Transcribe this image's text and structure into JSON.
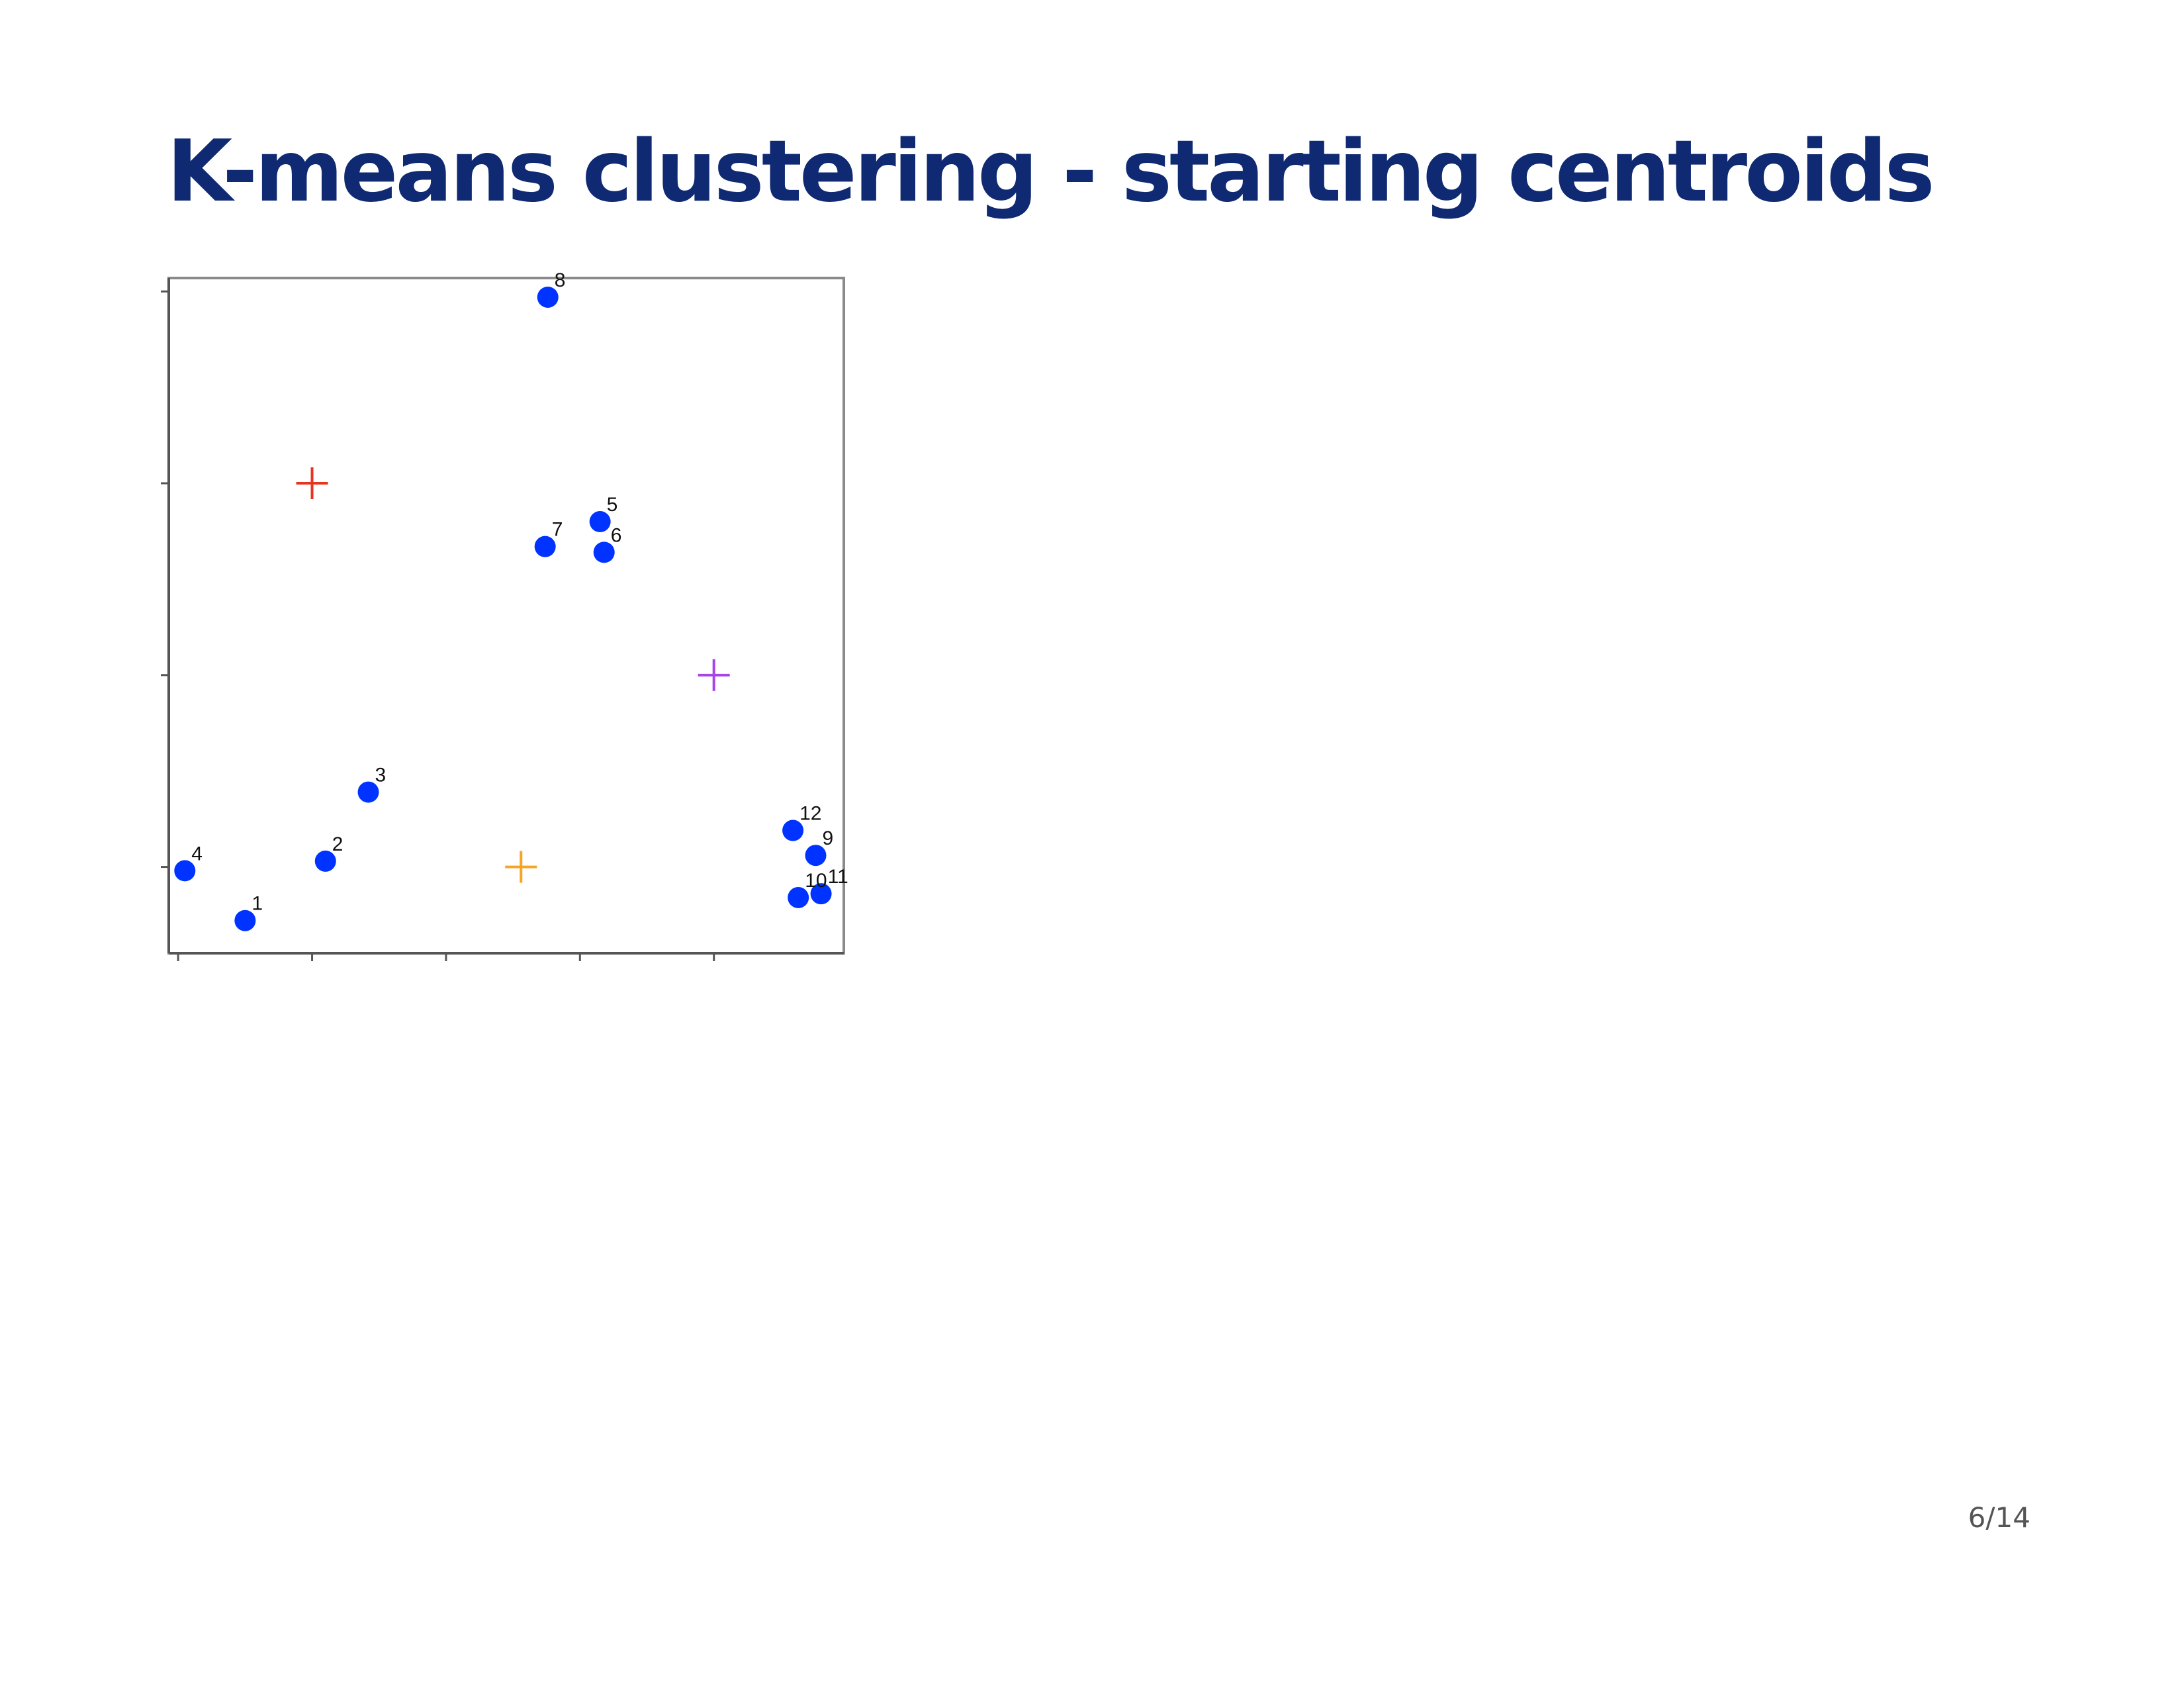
{
  "slide": {
    "title": "K-means clustering - starting centroids",
    "page_number": "6/14"
  },
  "colors": {
    "title": "#0f2a72",
    "point": "#0033ff",
    "axis": "#555555"
  },
  "icons": {
    "centroid_marker": "plus-icon"
  },
  "chart_data": {
    "type": "scatter",
    "title": "",
    "xlabel": "",
    "ylabel": "",
    "xlim": [
      0.03,
      5.07
    ],
    "ylim": [
      0.55,
      4.07
    ],
    "x_ticks": [
      0.1,
      1.1,
      2.1,
      3.1,
      4.1
    ],
    "y_ticks": [
      1.0,
      2.0,
      3.0,
      4.0
    ],
    "tick_labels_shown": false,
    "grid": false,
    "legend": "none",
    "series": [
      {
        "kind": "points",
        "color": "#0033ff",
        "marker": "filled-circle",
        "points": [
          {
            "label": "1",
            "x": 0.6,
            "y": 0.72
          },
          {
            "label": "2",
            "x": 1.2,
            "y": 1.03
          },
          {
            "label": "3",
            "x": 1.52,
            "y": 1.39
          },
          {
            "label": "4",
            "x": 0.15,
            "y": 0.98
          },
          {
            "label": "5",
            "x": 3.25,
            "y": 2.8
          },
          {
            "label": "6",
            "x": 3.28,
            "y": 2.64
          },
          {
            "label": "7",
            "x": 2.84,
            "y": 2.67
          },
          {
            "label": "8",
            "x": 2.86,
            "y": 3.97
          },
          {
            "label": "9",
            "x": 4.86,
            "y": 1.06
          },
          {
            "label": "10",
            "x": 4.73,
            "y": 0.84
          },
          {
            "label": "11",
            "x": 4.9,
            "y": 0.86
          },
          {
            "label": "12",
            "x": 4.69,
            "y": 1.19
          }
        ]
      },
      {
        "kind": "centroids",
        "marker": "plus",
        "points": [
          {
            "x": 1.1,
            "y": 3.0,
            "color": "#e8331f"
          },
          {
            "x": 4.1,
            "y": 2.0,
            "color": "#a646e6"
          },
          {
            "x": 2.66,
            "y": 1.0,
            "color": "#f5a623"
          }
        ]
      }
    ]
  }
}
